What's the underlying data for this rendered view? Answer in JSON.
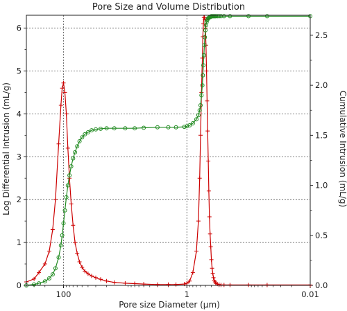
{
  "chart_data": {
    "type": "line",
    "title": "Pore Size and Volume Distribution",
    "xlabel": "Pore size Diameter (µm)",
    "ylabel_left": "Log Differential Intrusion (mL/g)",
    "ylabel_right": "Cumulative Intrusion (mL/g)",
    "x_scale": "log",
    "x_reversed": true,
    "xlim": [
      400,
      0.01
    ],
    "ylim_left": [
      0,
      6.3
    ],
    "ylim_right": [
      0,
      2.7
    ],
    "x_ticks": [
      {
        "value": 100,
        "label": "100"
      },
      {
        "value": 1,
        "label": "1"
      },
      {
        "value": 0.01,
        "label": "0.01"
      }
    ],
    "y_ticks_left": [
      "0",
      "1",
      "2",
      "3",
      "4",
      "5",
      "6"
    ],
    "y_ticks_right": [
      "0.0",
      "0.5",
      "1.0",
      "1.5",
      "2.0",
      "2.5"
    ],
    "grid": true,
    "series": [
      {
        "color": "#cc0000",
        "marker": "plus",
        "axis": "left",
        "x": [
          400,
          300,
          250,
          200,
          170,
          150,
          135,
          120,
          110,
          105,
          100,
          95,
          90,
          85,
          80,
          75,
          70,
          65,
          60,
          55,
          50,
          45,
          40,
          35,
          30,
          25,
          20,
          15,
          10,
          7,
          5,
          3,
          2,
          1.5,
          1.1,
          1.0,
          0.9,
          0.8,
          0.7,
          0.65,
          0.62,
          0.6,
          0.58,
          0.56,
          0.55,
          0.54,
          0.53,
          0.52,
          0.51,
          0.5,
          0.49,
          0.48,
          0.47,
          0.46,
          0.45,
          0.44,
          0.43,
          0.42,
          0.41,
          0.4,
          0.39,
          0.38,
          0.37,
          0.36,
          0.35,
          0.34,
          0.32,
          0.3,
          0.28,
          0.25,
          0.2,
          0.1,
          0.05,
          0.01
        ],
        "y": [
          0.08,
          0.15,
          0.3,
          0.5,
          0.8,
          1.3,
          2.0,
          3.3,
          4.2,
          4.6,
          4.72,
          4.5,
          4.0,
          3.2,
          2.5,
          1.9,
          1.4,
          1.0,
          0.75,
          0.55,
          0.42,
          0.33,
          0.27,
          0.22,
          0.18,
          0.14,
          0.1,
          0.07,
          0.05,
          0.04,
          0.03,
          0.02,
          0.02,
          0.02,
          0.03,
          0.05,
          0.1,
          0.3,
          0.8,
          1.5,
          2.5,
          3.5,
          4.5,
          5.3,
          5.8,
          6.1,
          6.25,
          6.25,
          6.2,
          6.0,
          5.6,
          5.0,
          4.3,
          3.6,
          2.9,
          2.2,
          1.6,
          1.2,
          0.9,
          0.6,
          0.4,
          0.28,
          0.18,
          0.12,
          0.08,
          0.05,
          0.03,
          0.02,
          0.01,
          0.01,
          0.01,
          0.01,
          0.01,
          0.01
        ]
      },
      {
        "color": "#228b22",
        "marker": "circle",
        "axis": "right",
        "x": [
          400,
          300,
          250,
          200,
          170,
          150,
          135,
          120,
          110,
          105,
          100,
          95,
          90,
          85,
          80,
          75,
          70,
          65,
          60,
          55,
          50,
          45,
          40,
          35,
          30,
          25,
          20,
          15,
          10,
          7,
          5,
          3,
          2,
          1.5,
          1.1,
          1.0,
          0.9,
          0.8,
          0.7,
          0.65,
          0.62,
          0.6,
          0.58,
          0.56,
          0.55,
          0.54,
          0.53,
          0.52,
          0.51,
          0.5,
          0.49,
          0.48,
          0.47,
          0.46,
          0.45,
          0.44,
          0.43,
          0.42,
          0.41,
          0.4,
          0.39,
          0.38,
          0.37,
          0.36,
          0.35,
          0.34,
          0.32,
          0.3,
          0.28,
          0.25,
          0.2,
          0.1,
          0.05,
          0.01
        ],
        "y": [
          0.0,
          0.01,
          0.02,
          0.04,
          0.07,
          0.11,
          0.17,
          0.28,
          0.4,
          0.5,
          0.62,
          0.75,
          0.88,
          1.0,
          1.1,
          1.19,
          1.27,
          1.33,
          1.39,
          1.44,
          1.48,
          1.51,
          1.53,
          1.55,
          1.56,
          1.565,
          1.57,
          1.57,
          1.57,
          1.57,
          1.575,
          1.58,
          1.58,
          1.58,
          1.585,
          1.59,
          1.6,
          1.62,
          1.66,
          1.7,
          1.75,
          1.8,
          1.9,
          2.0,
          2.1,
          2.2,
          2.3,
          2.4,
          2.48,
          2.55,
          2.6,
          2.63,
          2.65,
          2.66,
          2.67,
          2.675,
          2.68,
          2.68,
          2.685,
          2.69,
          2.69,
          2.69,
          2.69,
          2.69,
          2.69,
          2.69,
          2.69,
          2.69,
          2.69,
          2.69,
          2.69,
          2.69,
          2.69,
          2.69
        ]
      }
    ]
  }
}
